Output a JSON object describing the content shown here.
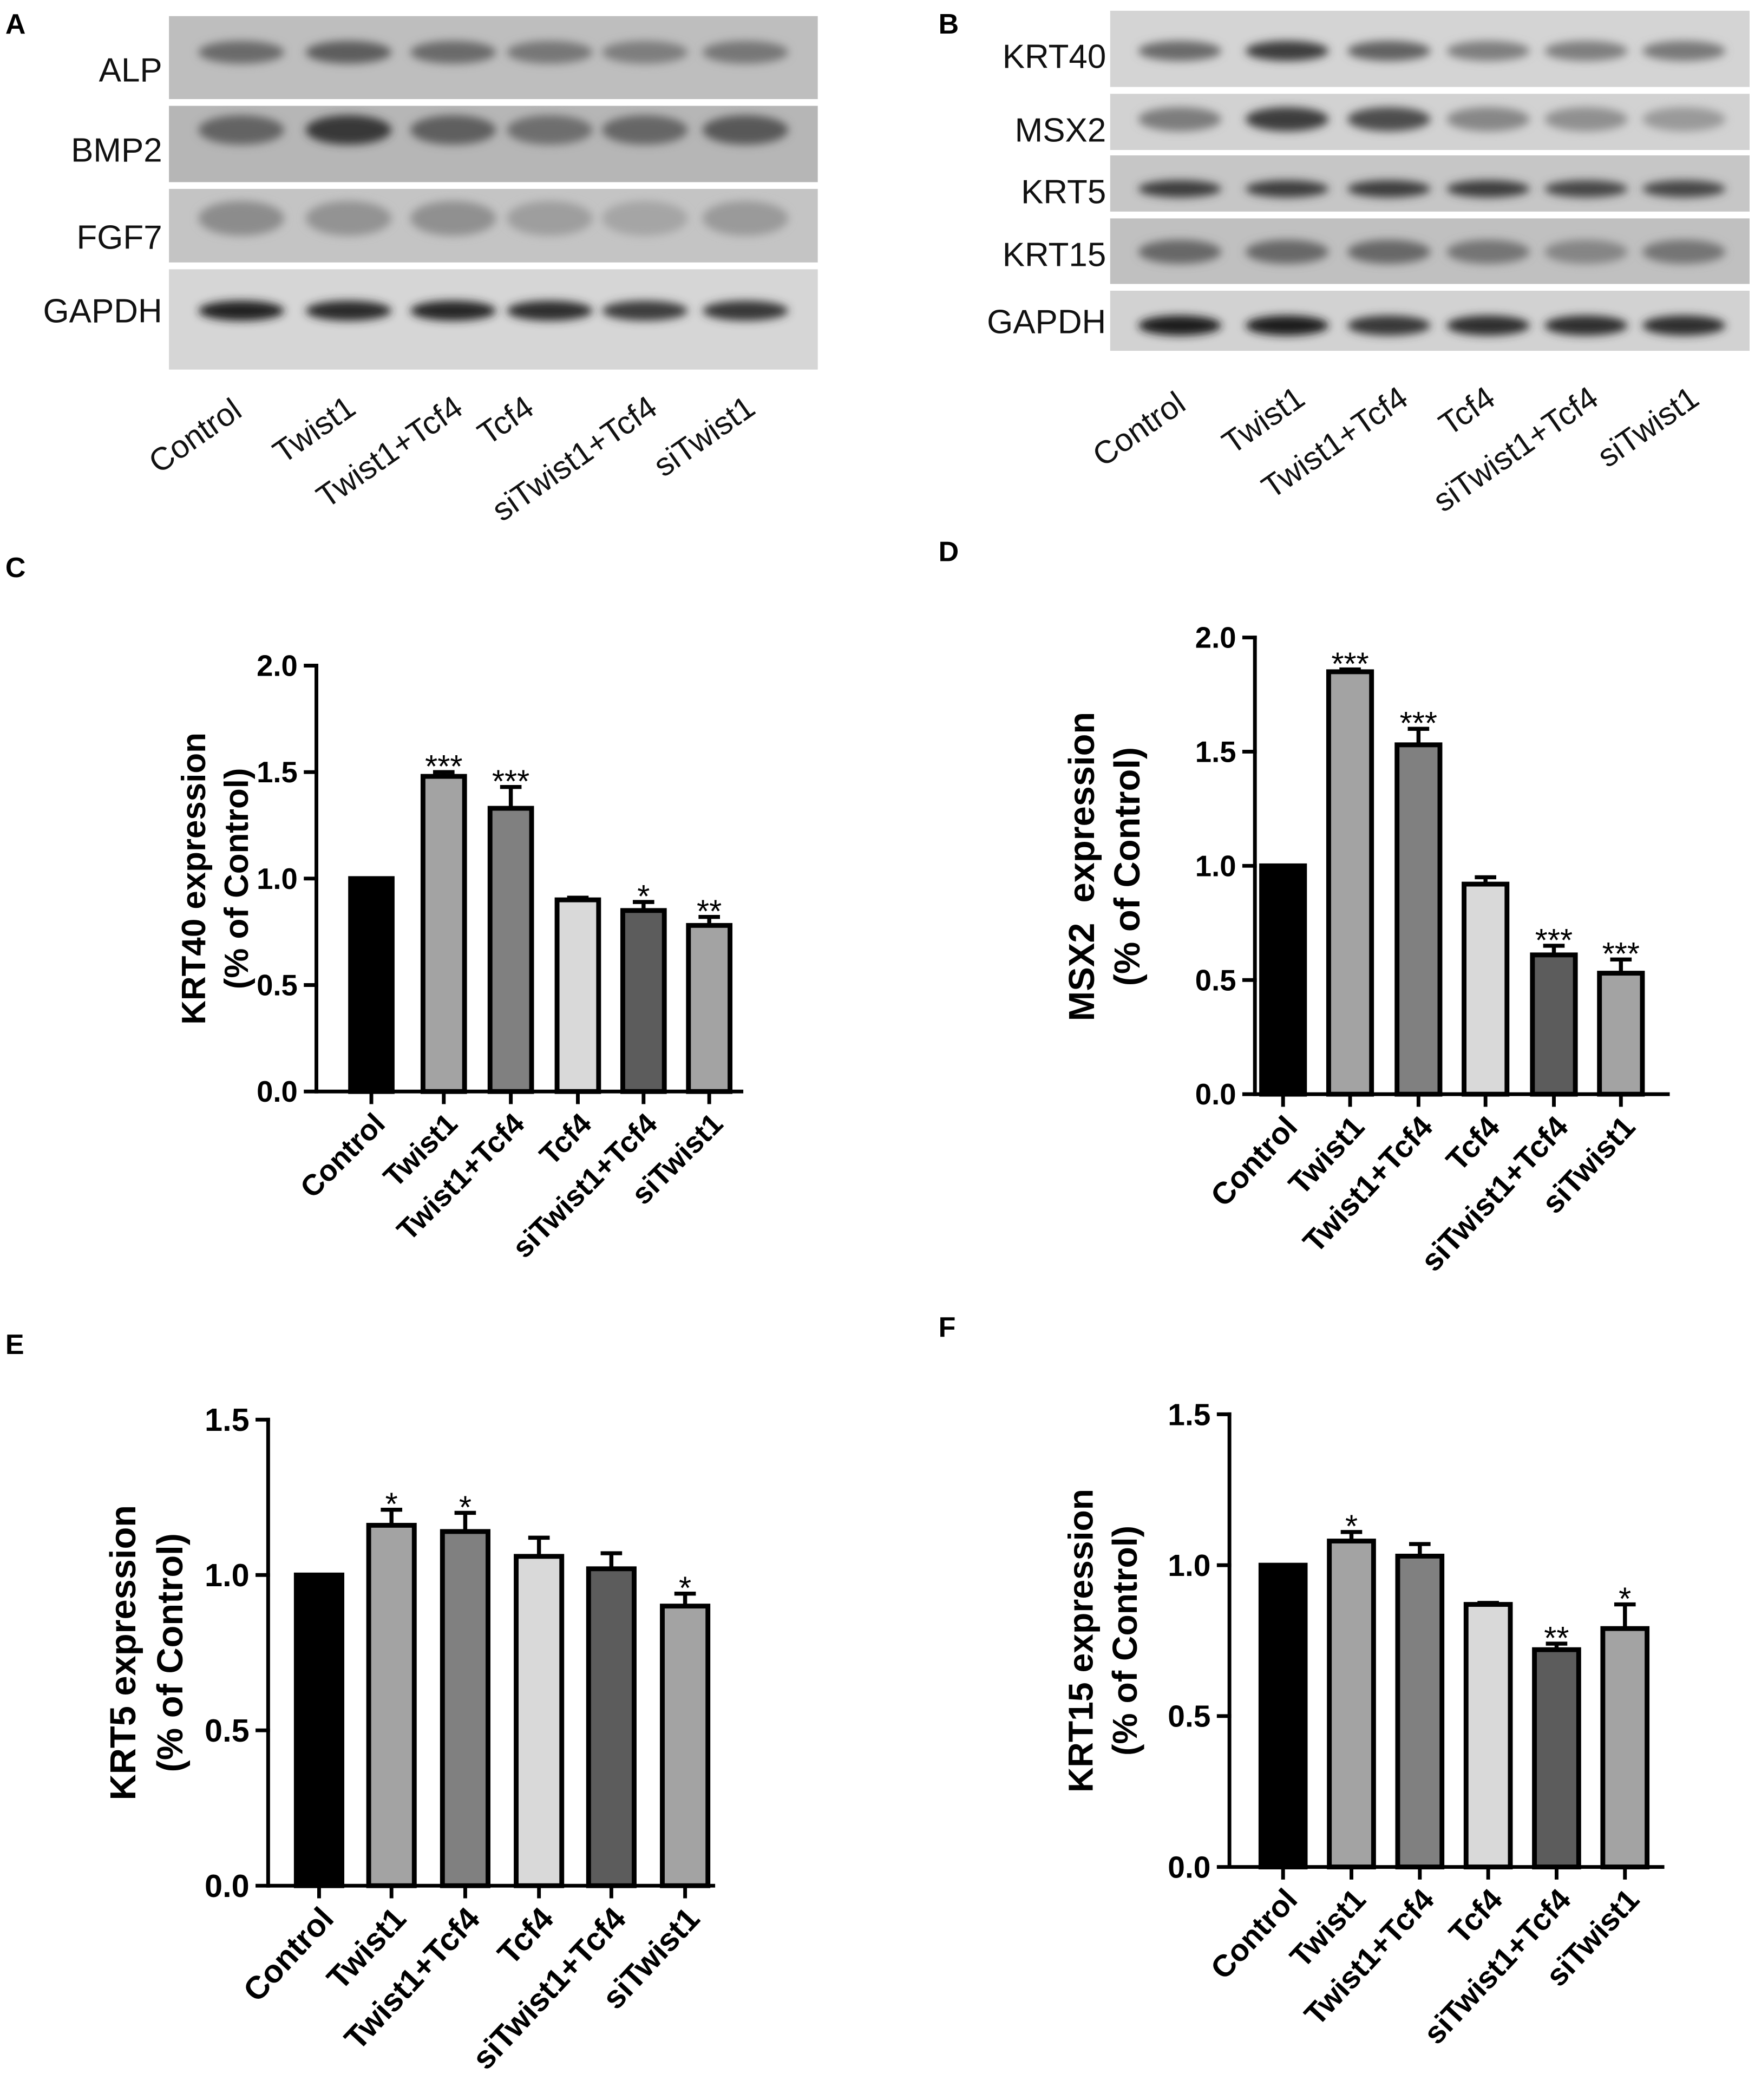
{
  "blots": [
    {
      "panel_label": "A",
      "rows": [
        "ALP",
        "BMP2",
        "FGF7",
        "GAPDH"
      ],
      "lanes": [
        "Control",
        "Twist1",
        "Twist1+Tcf4",
        "Tcf4",
        "siTwist1+Tcf4",
        "siTwist1"
      ]
    },
    {
      "panel_label": "B",
      "rows": [
        "KRT40",
        "MSX2",
        "KRT5",
        "KRT15",
        "GAPDH"
      ],
      "lanes": [
        "Control",
        "Twist1",
        "Twist1+Tcf4",
        "Tcf4",
        "siTwist1+Tcf4",
        "siTwist1"
      ]
    }
  ],
  "chart_data": [
    {
      "panel_label": "C",
      "type": "bar",
      "categories": [
        "Control",
        "Twist1",
        "Twist1+Tcf4",
        "Tcf4",
        "siTwist1+Tcf4",
        "siTwist1"
      ],
      "values": [
        1.0,
        1.48,
        1.33,
        0.9,
        0.85,
        0.78
      ],
      "errors": [
        0,
        0.02,
        0.1,
        0.01,
        0.04,
        0.04
      ],
      "significance": [
        "",
        "***",
        "***",
        "",
        "*",
        "**"
      ],
      "ylabel": [
        "KRT40 expression",
        "(% of Control)"
      ],
      "ylim": [
        0,
        2.0
      ],
      "ytick_labels": [
        "0.0",
        "0.5",
        "1.0",
        "1.5",
        "2.0"
      ],
      "grid": false,
      "bar_colors": [
        "#000000",
        "#a3a3a3",
        "#808080",
        "#d9d9d9",
        "#5c5c5c",
        "#a3a3a3"
      ]
    },
    {
      "panel_label": "D",
      "type": "bar",
      "categories": [
        "Control",
        "Twist1",
        "Twist1+Tcf4",
        "Tcf4",
        "siTwist1+Tcf4",
        "siTwist1"
      ],
      "values": [
        1.0,
        1.85,
        1.53,
        0.92,
        0.61,
        0.53
      ],
      "errors": [
        0,
        0.01,
        0.07,
        0.03,
        0.04,
        0.06
      ],
      "significance": [
        "",
        "***",
        "***",
        "",
        "***",
        "***"
      ],
      "ylabel": [
        "MSX2  expression",
        "(% of Control)"
      ],
      "ylim": [
        0,
        2.0
      ],
      "ytick_labels": [
        "0.0",
        "0.5",
        "1.0",
        "1.5",
        "2.0"
      ],
      "grid": false,
      "bar_colors": [
        "#000000",
        "#a3a3a3",
        "#808080",
        "#d9d9d9",
        "#5c5c5c",
        "#a3a3a3"
      ]
    },
    {
      "panel_label": "E",
      "type": "bar",
      "categories": [
        "Control",
        "Twist1",
        "Twist1+Tcf4",
        "Tcf4",
        "siTwist1+Tcf4",
        "siTwist1"
      ],
      "values": [
        1.0,
        1.16,
        1.14,
        1.06,
        1.02,
        0.9
      ],
      "errors": [
        0,
        0.05,
        0.06,
        0.06,
        0.05,
        0.04
      ],
      "significance": [
        "",
        "*",
        "*",
        "",
        "",
        "*"
      ],
      "ylabel": [
        "KRT5 expression",
        "(% of Control)"
      ],
      "ylim": [
        0,
        1.5
      ],
      "ytick_labels": [
        "0.0",
        "0.5",
        "1.0",
        "1.5"
      ],
      "grid": false,
      "bar_colors": [
        "#000000",
        "#a3a3a3",
        "#808080",
        "#d9d9d9",
        "#5c5c5c",
        "#a3a3a3"
      ]
    },
    {
      "panel_label": "F",
      "type": "bar",
      "categories": [
        "Control",
        "Twist1",
        "Twist1+Tcf4",
        "Tcf4",
        "siTwist1+Tcf4",
        "siTwist1"
      ],
      "values": [
        1.0,
        1.08,
        1.03,
        0.87,
        0.72,
        0.79
      ],
      "errors": [
        0,
        0.03,
        0.04,
        0.005,
        0.02,
        0.08
      ],
      "significance": [
        "",
        "*",
        "",
        "",
        "**",
        "*"
      ],
      "ylabel": [
        "KRT15 expression",
        "(% of Control)"
      ],
      "ylim": [
        0,
        1.5
      ],
      "ytick_labels": [
        "0.0",
        "0.5",
        "1.0",
        "1.5"
      ],
      "grid": false,
      "bar_colors": [
        "#000000",
        "#a3a3a3",
        "#808080",
        "#d9d9d9",
        "#5c5c5c",
        "#a3a3a3"
      ]
    }
  ]
}
